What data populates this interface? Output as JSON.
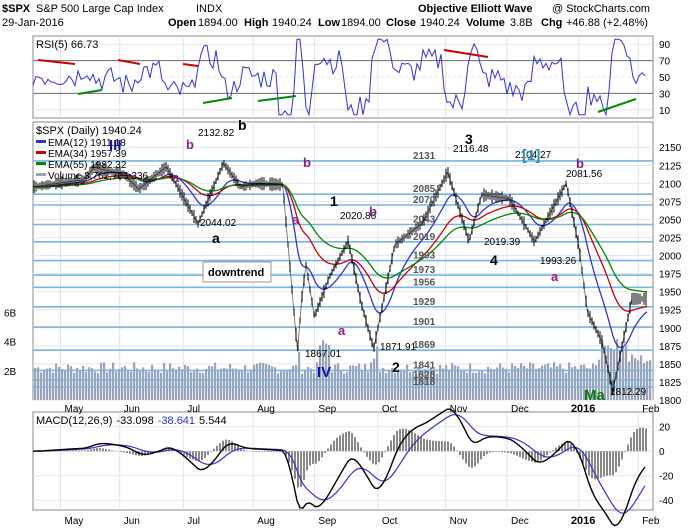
{
  "header": {
    "symbol": "$SPX",
    "name": "S&P 500 Large Cap Index",
    "exchange": "INDX",
    "date": "29-Jan-2016",
    "open_label": "Open",
    "open": "1894.00",
    "high_label": "High",
    "high": "1940.24",
    "low_label": "Low",
    "low": "1894.00",
    "close_label": "Close",
    "close": "1940.24",
    "volume_label": "Volume",
    "volume": "3.8B",
    "chg_label": "Chg",
    "chg": "+46.88 (+2.48%)",
    "watermark": "Objective Elliott Wave",
    "credit": "@ StockCharts.com"
  },
  "rsi_panel": {
    "label": "RSI(5) 66.73",
    "ticks": [
      "90",
      "70",
      "50",
      "30",
      "10"
    ],
    "colors": {
      "line": "#3333cc",
      "fill": "#000000",
      "overbought_trend": "#cc0000",
      "oversold_trend": "#008800"
    }
  },
  "legend": {
    "title": "$SPX (Daily) 1940.24",
    "items": [
      {
        "text": "EMA(12) 1911.18",
        "color": "#3333cc"
      },
      {
        "text": "EMA(34) 1957.39",
        "color": "#cc0000"
      },
      {
        "text": "EMA(55) 1982.32",
        "color": "#008800"
      },
      {
        "text": "Volume 3,762,766,336",
        "color": "#9aa4b8"
      }
    ]
  },
  "price_axis_ticks": [
    "2150",
    "2125",
    "2100",
    "2075",
    "2050",
    "2025",
    "2000",
    "1975",
    "1950",
    "1925",
    "1900",
    "1875",
    "1850",
    "1825",
    "1800"
  ],
  "volume_axis_ticks": [
    "6B",
    "4B",
    "2B"
  ],
  "month_labels": [
    "May",
    "Jun",
    "Jul",
    "Aug",
    "Sep",
    "Oct",
    "Nov",
    "Dec",
    "2016",
    "Feb"
  ],
  "levels": [
    {
      "value": 2131,
      "label": "2131"
    },
    {
      "value": 2085,
      "label": "2085"
    },
    {
      "value": 2070,
      "label": "2070"
    },
    {
      "value": 2043,
      "label": "2043"
    },
    {
      "value": 2019,
      "label": "2019"
    },
    {
      "value": 1993,
      "label": "1993"
    },
    {
      "value": 1973,
      "label": "1973"
    },
    {
      "value": 1956,
      "label": "1956"
    },
    {
      "value": 1929,
      "label": "1929"
    },
    {
      "value": 1901,
      "label": "1901"
    },
    {
      "value": 1869,
      "label": "1869"
    },
    {
      "value": 1841,
      "label": "1841"
    },
    {
      "value": 1828,
      "label": "1828"
    },
    {
      "value": 1818,
      "label": "1818"
    }
  ],
  "wave_labels": [
    {
      "text": "III",
      "color": "#1111aa",
      "size": 15
    },
    {
      "text": "b",
      "color": "#000000",
      "size": 14
    },
    {
      "text": "b",
      "color": "#882288",
      "size": 13
    },
    {
      "text": "a",
      "color": "#882288",
      "size": 13
    },
    {
      "text": "a",
      "color": "#000000",
      "size": 14
    },
    {
      "text": "b",
      "color": "#882288",
      "size": 13
    },
    {
      "text": "a",
      "color": "#882288",
      "size": 13
    },
    {
      "text": "1",
      "color": "#000000",
      "size": 14
    },
    {
      "text": "b",
      "color": "#882288",
      "size": 13
    },
    {
      "text": "a",
      "color": "#882288",
      "size": 13
    },
    {
      "text": "IV",
      "color": "#1111aa",
      "size": 15
    },
    {
      "text": "2",
      "color": "#000000",
      "size": 14
    },
    {
      "text": "3",
      "color": "#000000",
      "size": 14
    },
    {
      "text": "4",
      "color": "#000000",
      "size": 14
    },
    {
      "text": "[1]",
      "color": "#2a8fb0",
      "size": 15
    },
    {
      "text": "b",
      "color": "#882288",
      "size": 13
    },
    {
      "text": "a",
      "color": "#882288",
      "size": 13
    },
    {
      "text": "Ma",
      "color": "#117711",
      "size": 15
    }
  ],
  "price_annotations": [
    "2132.82",
    "2044.02",
    "2020.86",
    "1867.01",
    "1871.91",
    "2116.48",
    "2019.39",
    "2104.27",
    "2081.56",
    "1993.26",
    "1812.29"
  ],
  "downtrend_label": "downtrend",
  "macd_panel": {
    "label_prefix": "MACD(12,26,9)",
    "macd": "-33.098",
    "signal": "-38.641",
    "histogram": "5.544",
    "ticks": [
      "20",
      "0",
      "-20",
      "-40"
    ],
    "colors": {
      "macd": "#000000",
      "signal": "#3333cc",
      "histogram": "#888888"
    }
  },
  "chart_data": {
    "type": "line",
    "instrument": "$SPX",
    "x": [
      "2015-04-21",
      "2015-05-15",
      "2015-05-20",
      "2015-06-03",
      "2015-06-10",
      "2015-06-23",
      "2015-07-08",
      "2015-07-20",
      "2015-07-28",
      "2015-08-05",
      "2015-08-17",
      "2015-08-24",
      "2015-08-26",
      "2015-08-28",
      "2015-09-01",
      "2015-09-08",
      "2015-09-17",
      "2015-09-23",
      "2015-09-29",
      "2015-10-09",
      "2015-10-22",
      "2015-11-03",
      "2015-11-13",
      "2015-11-19",
      "2015-12-02",
      "2015-12-10",
      "2015-12-14",
      "2015-12-29",
      "2016-01-04",
      "2016-01-08",
      "2016-01-15",
      "2016-01-20",
      "2016-01-29"
    ],
    "series": [
      {
        "values": [
          2095,
          2105,
          2122,
          2112,
          2092,
          2123,
          2044,
          2128,
          2095,
          2100,
          2098,
          1867,
          1940,
          1988,
          1915,
          1970,
          2020,
          1935,
          1871,
          2015,
          2045,
          2116,
          2020,
          2084,
          2079,
          2040,
          2019,
          2100,
          2012,
          1922,
          1880,
          1812,
          1940
        ]
      }
    ],
    "ylim": [
      1800,
      2160
    ],
    "volume_ylim_billions": [
      0,
      7
    ],
    "rsi_ylim": [
      0,
      100
    ],
    "macd_ylim": [
      -48,
      32
    ]
  }
}
